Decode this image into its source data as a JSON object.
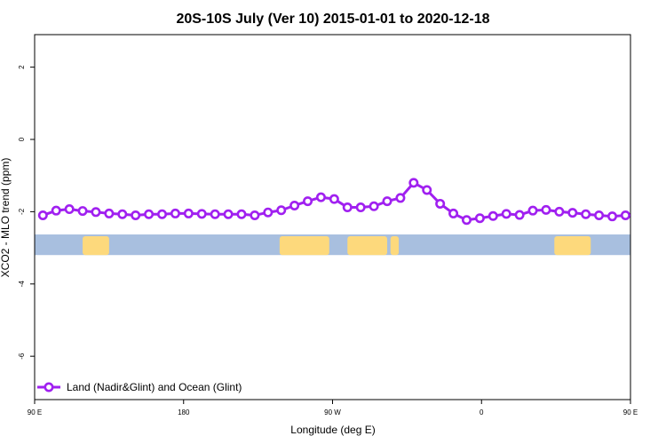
{
  "chart_data": {
    "type": "line",
    "title": "20S-10S July (Ver 10)   2015-01-01 to 2020-12-18",
    "xlabel": "Longitude (deg E)",
    "ylabel": "XCO2 - MLO trend (ppm)",
    "xlim": [
      -180,
      180
    ],
    "ylim": [
      -7.2,
      2.9
    ],
    "x_ticks": [
      {
        "value": -180,
        "label": "90 E"
      },
      {
        "value": -90,
        "label": "180"
      },
      {
        "value": 0,
        "label": "90 W"
      },
      {
        "value": 90,
        "label": "0"
      },
      {
        "value": 180,
        "label": "90 E"
      }
    ],
    "y_ticks": [
      {
        "value": 2,
        "label": "2"
      },
      {
        "value": 0,
        "label": "0"
      },
      {
        "value": -2,
        "label": "-2"
      },
      {
        "value": -4,
        "label": "-4"
      },
      {
        "value": -6,
        "label": "-6"
      }
    ],
    "series": [
      {
        "name": "Land (Nadir&Glint) and Ocean (Glint)",
        "color": "#a020f0",
        "x": [
          -175,
          -167,
          -159,
          -151,
          -143,
          -135,
          -127,
          -119,
          -111,
          -103,
          -95,
          -87,
          -79,
          -71,
          -63,
          -55,
          -47,
          -39,
          -31,
          -23,
          -15,
          -7,
          1,
          9,
          17,
          25,
          33,
          41,
          49,
          57,
          65,
          73,
          81,
          89,
          97,
          105,
          113,
          121,
          129,
          137,
          145,
          153,
          161,
          169,
          177
        ],
        "values": [
          -2.1,
          -1.97,
          -1.93,
          -1.98,
          -2.01,
          -2.05,
          -2.07,
          -2.1,
          -2.07,
          -2.07,
          -2.05,
          -2.05,
          -2.06,
          -2.07,
          -2.07,
          -2.07,
          -2.1,
          -2.02,
          -1.96,
          -1.83,
          -1.71,
          -1.6,
          -1.65,
          -1.88,
          -1.88,
          -1.85,
          -1.71,
          -1.62,
          -1.2,
          -1.4,
          -1.78,
          -2.05,
          -2.23,
          -2.18,
          -2.12,
          -2.06,
          -2.09,
          -1.97,
          -1.95,
          -2.0,
          -2.03,
          -2.07,
          -2.1,
          -2.13,
          -2.1
        ]
      }
    ],
    "legend": {
      "position": "bottom-left"
    },
    "background_band": {
      "y_range": [
        -3.2,
        -2.63
      ],
      "ocean_color": "#a8bfdf",
      "land_color": "#fdd97c"
    },
    "land_spans": [
      {
        "x": [
          -151,
          -135
        ]
      },
      {
        "x": [
          -32,
          -2
        ]
      },
      {
        "x": [
          9,
          33
        ]
      },
      {
        "x": [
          35,
          40
        ]
      },
      {
        "x": [
          134,
          156
        ]
      }
    ],
    "grid": false
  }
}
